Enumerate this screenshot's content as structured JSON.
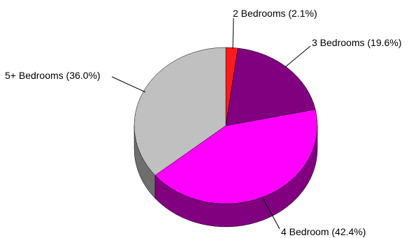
{
  "chart_data": {
    "type": "pie",
    "style": "3d",
    "start_angle_deg": 270,
    "direction": "clockwise",
    "legend": "none",
    "slices": [
      {
        "label": "2 Bedrooms (2.1%)",
        "value": 2.1,
        "color": "#ff1a1a",
        "side_color": "#c00000"
      },
      {
        "label": "3 Bedrooms (19.6%)",
        "value": 19.6,
        "color": "#800080",
        "side_color": "#4d004d"
      },
      {
        "label": "4 Bedroom (42.4%)",
        "value": 42.4,
        "color": "#ff00ff",
        "side_color": "#800080"
      },
      {
        "label": "5+ Bedrooms (36.0%)",
        "value": 36.0,
        "color": "#c0c0c0",
        "side_color": "#6e6e6e"
      }
    ]
  }
}
